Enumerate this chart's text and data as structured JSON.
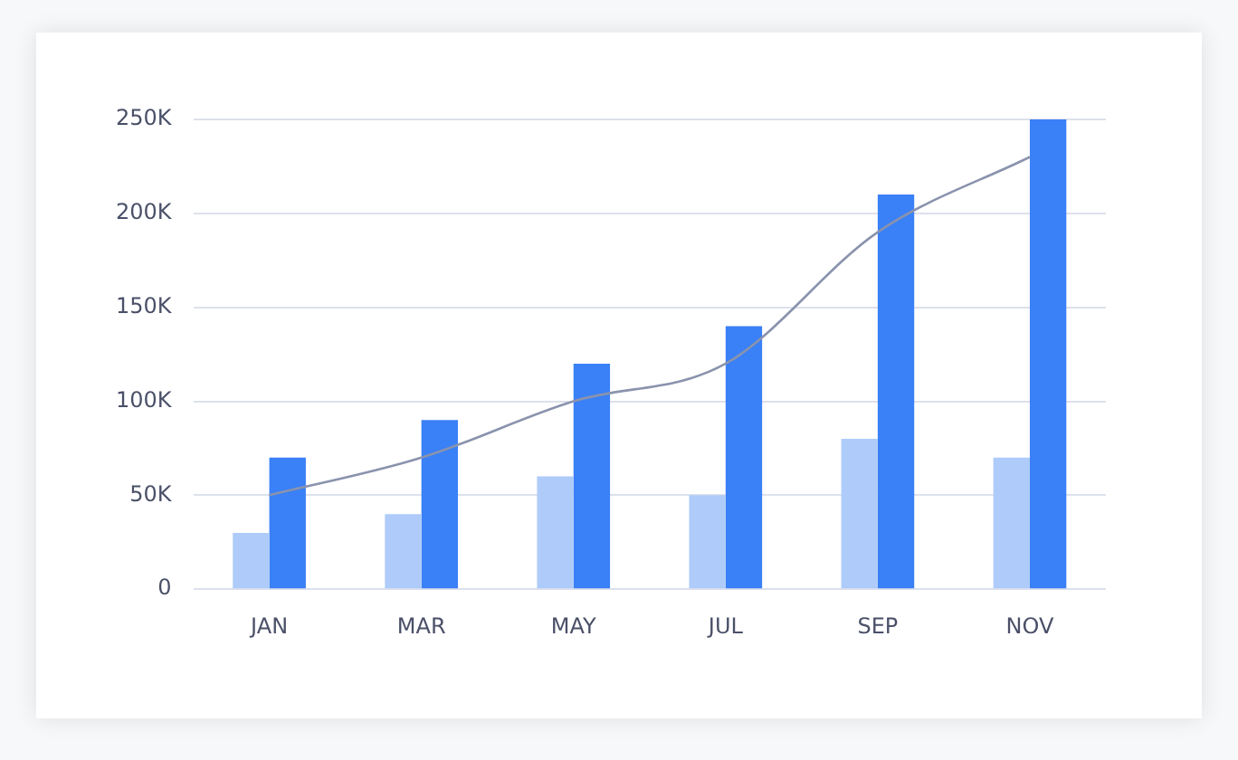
{
  "chart_data": {
    "type": "bar",
    "categories": [
      "JAN",
      "MAR",
      "MAY",
      "JUL",
      "SEP",
      "NOV"
    ],
    "series": [
      {
        "color": "#aecbfa",
        "values": [
          30000,
          40000,
          60000,
          50000,
          80000,
          70000
        ]
      },
      {
        "color": "#3a80f6",
        "values": [
          70000,
          90000,
          120000,
          140000,
          210000,
          250000
        ]
      },
      {
        "type": "line",
        "color": "#8a93ad",
        "values": [
          50000,
          70000,
          100000,
          120000,
          190000,
          230000
        ]
      }
    ],
    "ylim": [
      0,
      250000
    ],
    "yticks": [
      0,
      {
        "value": 50000,
        "label": "50K"
      },
      {
        "value": 100000,
        "label": "100K"
      },
      {
        "value": 150000,
        "label": "150K"
      },
      {
        "value": 200000,
        "label": "200K"
      },
      {
        "value": 250000,
        "label": "250K"
      }
    ],
    "grid": "y",
    "legend": false,
    "marker": "none"
  }
}
